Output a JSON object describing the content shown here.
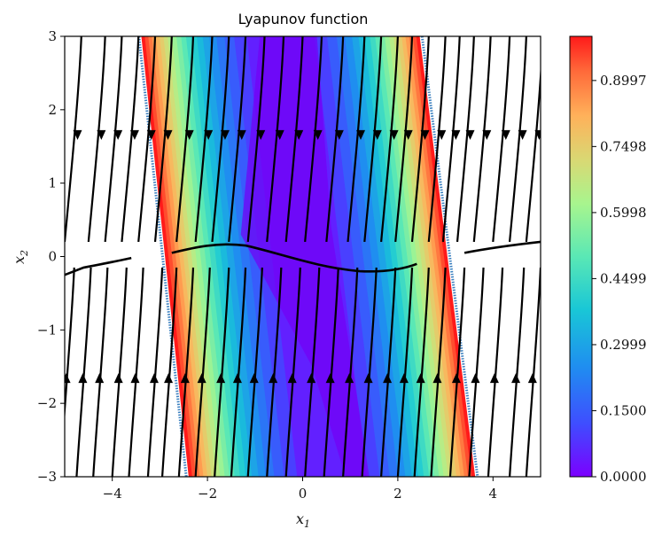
{
  "chart_data": {
    "type": "heatmap",
    "title": "Lyapunov function",
    "xlabel": "x_1",
    "ylabel": "x_2",
    "xlim": [
      -5,
      5
    ],
    "ylim": [
      -3,
      3
    ],
    "xticks": [
      -4,
      -2,
      0,
      2,
      4
    ],
    "yticks": [
      -3,
      -2,
      -1,
      0,
      1,
      2,
      3
    ],
    "colorbar": {
      "ticks": [
        "0.0000",
        "0.1500",
        "0.2999",
        "0.4499",
        "0.5998",
        "0.7498",
        "0.8997"
      ],
      "range": [
        0,
        1.0
      ],
      "colormap": "rainbow"
    },
    "region": {
      "description": "level-set band of Lyapunov function, outside region uncolored",
      "band_center_slope_x_per_x2": -0.18,
      "band_halfwidth_x1": 2.85,
      "boundary_color": "#3a7fbf"
    },
    "streamlines": {
      "color": "#000000",
      "separatrix_color": "#000000"
    },
    "colors": {
      "low": "#7b00ff",
      "high": "#ff1a1a"
    }
  }
}
